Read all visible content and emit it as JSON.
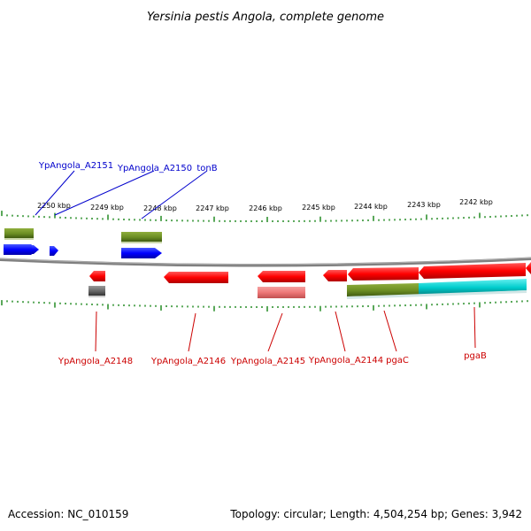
{
  "title": "Yersinia pestis Angola, complete genome",
  "footer": {
    "accession": "Accession: NC_010159",
    "topology": "Topology: circular; Length: 4,504,254 bp; Genes: 3,942"
  },
  "colors": {
    "forward_cds": "#0000ff",
    "reverse_cds": "#ff0000",
    "reverse_cds_faded": "#f08080",
    "forward_label": "#0000cc",
    "reverse_label": "#cc0000",
    "olive_feature": "#6b8e23",
    "cyan_feature": "#00cccc",
    "gray_feature": "#666666",
    "tick": "#228b22",
    "backbone": "#808080"
  },
  "axis": {
    "unit": "kbp",
    "labels": [
      "2250 kbp",
      "2249 kbp",
      "2248 kbp",
      "2247 kbp",
      "2246 kbp",
      "2245 kbp",
      "2244 kbp",
      "2243 kbp",
      "2242 kbp"
    ]
  },
  "genes_forward": [
    {
      "name": "YpAngola_A2151"
    },
    {
      "name": "YpAngola_A2150"
    },
    {
      "name": "tonB"
    }
  ],
  "genes_reverse": [
    {
      "name": "YpAngola_A2148"
    },
    {
      "name": "YpAngola_A2146"
    },
    {
      "name": "YpAngola_A2145"
    },
    {
      "name": "YpAngola_A2144"
    },
    {
      "name": "pgaC"
    },
    {
      "name": "pgaB"
    }
  ]
}
